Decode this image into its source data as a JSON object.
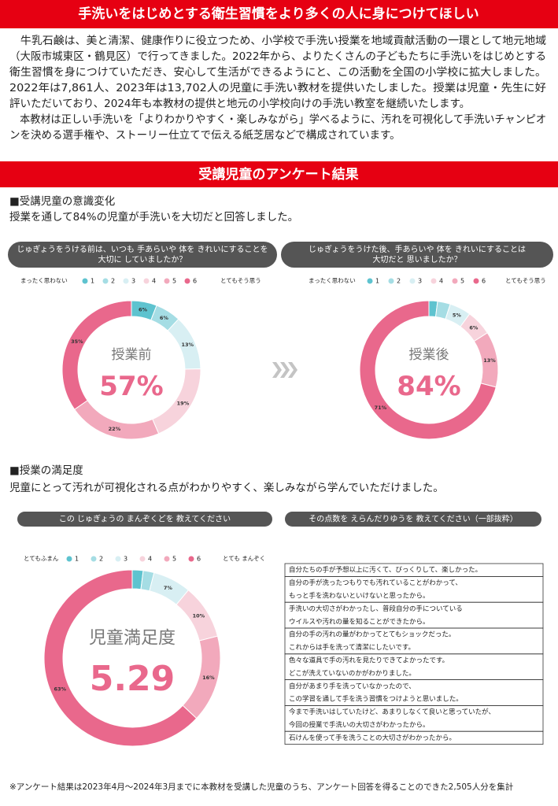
{
  "header": {
    "title": "手洗いをはじめとする衛生習慣をより多くの人に身につけてほしい"
  },
  "intro": {
    "paragraphs": [
      [
        "　牛乳石鹸は、美と清潔、健康作りに役立つため、小学校で手洗い授業を地域貢献活動の一環として地元地域",
        "（大阪市城東区・鶴見区）で行ってきました。2022年から、よりたくさんの子どもたちに手洗いをはじめとする",
        "衛生習慣を身につけていただき、安心して生活ができるようにと、この活動を全国の小学校に拡大しました。",
        "2022年は7,861人、2023年は13,702人の児童に手洗い教材を提供いたしました。授業は児童・先生に好",
        "評いただいており、2024年も本教材の提供と地元の小学校向けの手洗い教室を継続いたします。"
      ],
      [
        "　本教材は正しい手洗いを「よりわかりやすく・楽しみながら」学べるように、汚れを可視化して手洗いチャンピオ",
        "ンを決める選手権や、ストーリー仕立てで伝える紙芝居などで構成されています。"
      ]
    ]
  },
  "section": {
    "title": "受講児童のアンケート結果"
  },
  "awareness": {
    "heading": "■受講児童の意識変化",
    "summary": "授業を通して84%の児童が手洗いを大切だと回答しました。"
  },
  "satisfaction": {
    "heading": "■授業の満足度",
    "summary": "児童にとって汚れが可視化される点がわかりやすく、楽しみながら学んでいただけました。",
    "comments_title": "その点数を えらんだりゆうを 教えてください（一部抜粋）",
    "comments": [
      [
        "自分たちの手が予想以上に汚くて、びっくりして、楽しかった。"
      ],
      [
        "自分の手が洗ったつもりでも汚れていることがわかって、",
        "もっと手を洗わないといけないと思ったから。"
      ],
      [
        "手洗いの大切さがわかったし、普段自分の手についている",
        "ウイルスや汚れの量を知ることができたから。"
      ],
      [
        "自分の手の汚れの量がわかってとてもショックだった。",
        "これからは手を洗って清潔にしたいです。"
      ],
      [
        "色々な道具で手の汚れを見たりできてよかったです。",
        "どこが洗えていないのかがわかりました。"
      ],
      [
        "自分があまり手を洗っていなかったので、",
        "この学習を通して手を洗う習慣をつけようと思いました。"
      ],
      [
        "今まで手洗いはしていたけど、あまりしなくて良いと思っていたが、",
        "今回の授業で手洗いの大切さがわかったから。"
      ],
      [
        "石けんを使って手を洗うことの大切さがわかったから。"
      ]
    ]
  },
  "chart_data": [
    {
      "type": "donut",
      "title_lines": [
        "じゅぎょうをうける前は、いつも 手あらいや 体を きれいにすることを",
        "大切に していましたか？"
      ],
      "categories": [
        "1",
        "2",
        "3",
        "4",
        "5",
        "6"
      ],
      "legend_low": "まったく思わない",
      "legend_high": "とてもそう思う",
      "colors": [
        "#5ec3cf",
        "#a5dde4",
        "#d8eff3",
        "#f7d3dc",
        "#f2a9bc",
        "#e9688c"
      ],
      "values": [
        6,
        6,
        13,
        19,
        22,
        35
      ],
      "value_labels": [
        "6%",
        "6%",
        "13%",
        "19%",
        "22%",
        "35%"
      ],
      "center_label": "授業前",
      "center_value": "57%"
    },
    {
      "type": "donut",
      "title_lines": [
        "じゅぎょうをうけた後、手あらいや 体を きれいにすることは",
        "大切だと 思いましたか？"
      ],
      "categories": [
        "1",
        "2",
        "3",
        "4",
        "5",
        "6"
      ],
      "legend_low": "まったく思わない",
      "legend_high": "とてもそう思う",
      "colors": [
        "#5ec3cf",
        "#a5dde4",
        "#d8eff3",
        "#f7d3dc",
        "#f2a9bc",
        "#e9688c"
      ],
      "values": [
        2,
        3,
        5,
        6,
        13,
        71
      ],
      "value_labels": [
        null,
        null,
        "5%",
        "6%",
        "13%",
        "71%"
      ],
      "center_label": "授業後",
      "center_value": "84%"
    },
    {
      "type": "donut",
      "title_lines": [
        "この じゅぎょうの まんぞくどを 教えてください"
      ],
      "categories": [
        "1",
        "2",
        "3",
        "4",
        "5",
        "6"
      ],
      "legend_low": "とてもふまん",
      "legend_high": "とても まんぞく",
      "colors": [
        "#5ec3cf",
        "#a5dde4",
        "#d8eff3",
        "#f7d3dc",
        "#f2a9bc",
        "#e9688c"
      ],
      "values": [
        2,
        2,
        7,
        10,
        16,
        63
      ],
      "value_labels": [
        null,
        null,
        "7%",
        "10%",
        "16%",
        "63%"
      ],
      "center_label": "児童満足度",
      "center_value": "5.29"
    }
  ],
  "footnote": "※アンケート結果は2023年4月～2024年3月までに本教材を受講した児童のうち、アンケート回答を得ることのできた2,505人分を集計"
}
